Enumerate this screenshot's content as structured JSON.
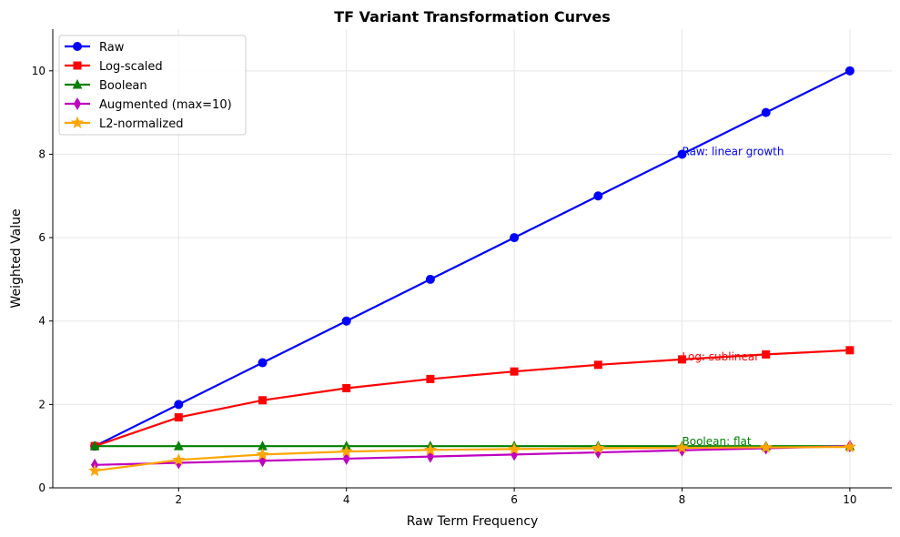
{
  "chart_data": {
    "type": "line",
    "title": "TF Variant Transformation Curves",
    "xlabel": "Raw Term Frequency",
    "ylabel": "Weighted Value",
    "xlim": [
      0.5,
      10.5
    ],
    "ylim": [
      0,
      11
    ],
    "xticks": [
      2,
      4,
      6,
      8,
      10
    ],
    "yticks": [
      0,
      2,
      4,
      6,
      8,
      10
    ],
    "grid": true,
    "legend_position": "top-left",
    "x": [
      1,
      2,
      3,
      4,
      5,
      6,
      7,
      8,
      9,
      10
    ],
    "series": [
      {
        "name": "Raw",
        "color": "#0000ff",
        "marker": "circle",
        "values": [
          1,
          2,
          3,
          4,
          5,
          6,
          7,
          8,
          9,
          10
        ]
      },
      {
        "name": "Log-scaled",
        "color": "#ff0000",
        "marker": "square",
        "values": [
          1.0,
          1.69,
          2.1,
          2.39,
          2.61,
          2.79,
          2.95,
          3.08,
          3.2,
          3.3
        ]
      },
      {
        "name": "Boolean",
        "color": "#008000",
        "marker": "triangle",
        "values": [
          1,
          1,
          1,
          1,
          1,
          1,
          1,
          1,
          1,
          1
        ]
      },
      {
        "name": "Augmented (max=10)",
        "color": "#bf00bf",
        "marker": "diamond",
        "values": [
          0.55,
          0.6,
          0.65,
          0.7,
          0.75,
          0.8,
          0.85,
          0.9,
          0.95,
          1.0
        ]
      },
      {
        "name": "L2-normalized",
        "color": "#ffa500",
        "marker": "star",
        "values": [
          0.41,
          0.67,
          0.8,
          0.87,
          0.91,
          0.93,
          0.95,
          0.96,
          0.97,
          0.98
        ]
      }
    ],
    "annotations": [
      {
        "text": "Raw: linear growth",
        "x": 8,
        "y": 8,
        "color": "#0000ff"
      },
      {
        "text": "Log: sublinear",
        "x": 8,
        "y": 3.08,
        "color": "#ff0000"
      },
      {
        "text": "Boolean: flat",
        "x": 8,
        "y": 1.05,
        "color": "#008000"
      }
    ]
  }
}
